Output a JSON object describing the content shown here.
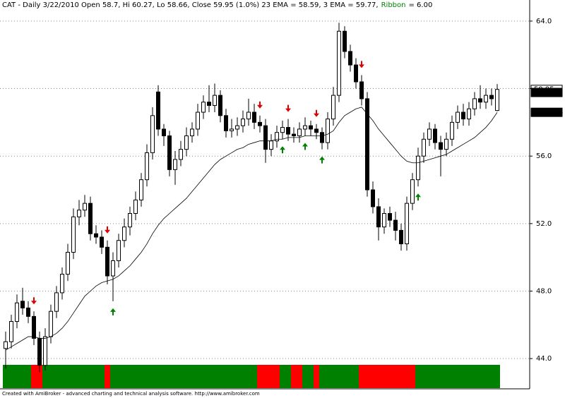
{
  "chart_data": {
    "type": "candlestick",
    "title": "CAT - Daily 3/22/2010 Open 58.7, Hi 60.27, Lo 58.66, Close 59.95 (1.0%) 23 EMA = 58.59, 3 EMA = 59.77,",
    "ribbon_name": "Ribbon",
    "ribbon_text": "= 6.00",
    "footer": "Created with AmiBroker - advanced charting and technical analysis software. http://www.amibroker.com",
    "ylim": [
      42.25,
      65.25
    ],
    "yticks": [
      {
        "value": 44,
        "label": "44.0"
      },
      {
        "value": 48,
        "label": "48.0"
      },
      {
        "value": 52,
        "label": "52.0"
      },
      {
        "value": 56,
        "label": "56.0"
      },
      {
        "value": 60,
        "label": "60.0"
      },
      {
        "value": 64,
        "label": "64.0"
      }
    ],
    "grid": true,
    "open": [
      44.6,
      45.0,
      46.2,
      47.4,
      47.0,
      46.5,
      45.2,
      43.6,
      45.3,
      46.8,
      47.9,
      49.0,
      50.3,
      52.4,
      52.8,
      53.2,
      51.4,
      51.2,
      50.6,
      48.9,
      49.8,
      51.0,
      51.8,
      52.6,
      53.4,
      54.6,
      56.2,
      59.8,
      57.6,
      57.2,
      55.2,
      55.8,
      56.4,
      57.2,
      57.6,
      58.6,
      59.2,
      59.0,
      59.6,
      58.4,
      57.5,
      57.6,
      57.8,
      58.2,
      58.6,
      58.0,
      57.8,
      56.4,
      56.9,
      57.4,
      57.7,
      57.3,
      57.2,
      57.6,
      57.8,
      57.6,
      57.4,
      56.8,
      58.2,
      59.6,
      63.4,
      62.2,
      61.4,
      60.4,
      59.4,
      54.0,
      53.0,
      51.8,
      52.6,
      52.2,
      51.6,
      50.8,
      53.2,
      54.6,
      56.0,
      57.0,
      57.6,
      56.8,
      56.4,
      57.0,
      58.0,
      58.6,
      58.2,
      58.8,
      59.4,
      59.2,
      59.6,
      58.7
    ],
    "high": [
      45.6,
      46.6,
      47.8,
      48.2,
      47.4,
      46.8,
      45.6,
      45.8,
      47.2,
      48.3,
      49.4,
      50.8,
      52.9,
      53.4,
      53.7,
      53.6,
      51.9,
      51.6,
      51.0,
      50.3,
      51.4,
      52.3,
      53.0,
      53.9,
      55.0,
      56.7,
      58.9,
      60.2,
      57.9,
      57.5,
      56.3,
      56.9,
      57.7,
      58.0,
      59.1,
      59.6,
      60.2,
      60.3,
      59.9,
      58.8,
      58.2,
      58.3,
      58.7,
      59.4,
      59.1,
      58.4,
      58.2,
      57.3,
      57.8,
      58.1,
      58.2,
      57.7,
      58.0,
      58.3,
      58.1,
      57.9,
      57.7,
      58.6,
      60.1,
      63.9,
      63.7,
      62.6,
      61.8,
      60.8,
      59.8,
      54.5,
      53.5,
      52.9,
      53.0,
      52.7,
      52.0,
      53.6,
      55.0,
      56.5,
      57.4,
      58.0,
      57.9,
      57.2,
      57.4,
      58.4,
      59.0,
      59.1,
      59.2,
      59.8,
      60.2,
      60.0,
      60.0,
      60.27
    ],
    "low": [
      43.4,
      44.6,
      45.8,
      46.6,
      46.1,
      44.8,
      43.2,
      43.3,
      44.9,
      46.4,
      47.5,
      48.6,
      49.9,
      51.9,
      52.4,
      51.0,
      50.8,
      50.2,
      48.4,
      47.4,
      49.4,
      50.6,
      51.3,
      52.2,
      53.0,
      54.2,
      55.8,
      57.2,
      56.6,
      54.8,
      54.3,
      55.4,
      56.0,
      56.8,
      57.2,
      58.2,
      58.6,
      58.6,
      58.0,
      57.1,
      57.1,
      57.2,
      57.4,
      57.8,
      57.6,
      57.4,
      55.6,
      56.0,
      56.5,
      57.0,
      56.9,
      56.8,
      56.8,
      57.2,
      57.2,
      57.0,
      56.4,
      56.4,
      57.8,
      59.2,
      61.8,
      61.0,
      60.0,
      59.0,
      53.6,
      52.6,
      51.0,
      51.4,
      51.8,
      51.0,
      50.4,
      50.4,
      52.8,
      54.2,
      55.6,
      56.6,
      56.4,
      54.8,
      56.0,
      56.6,
      57.6,
      57.8,
      57.8,
      58.4,
      58.8,
      58.8,
      59.0,
      58.66
    ],
    "close": [
      45.0,
      46.2,
      47.3,
      47.0,
      46.5,
      45.2,
      43.6,
      45.3,
      46.8,
      47.9,
      49.0,
      50.3,
      52.4,
      52.8,
      53.2,
      51.4,
      51.2,
      50.6,
      48.9,
      49.8,
      51.0,
      51.8,
      52.6,
      53.4,
      54.6,
      56.2,
      58.4,
      57.6,
      57.2,
      55.2,
      55.8,
      56.4,
      57.2,
      57.6,
      58.6,
      59.2,
      59.0,
      59.6,
      58.4,
      57.5,
      57.6,
      57.8,
      58.2,
      58.6,
      58.0,
      57.8,
      56.4,
      56.9,
      57.4,
      57.7,
      57.3,
      57.2,
      57.6,
      57.8,
      57.6,
      57.4,
      56.8,
      58.2,
      59.6,
      63.4,
      62.2,
      61.4,
      60.4,
      59.4,
      54.0,
      53.0,
      51.8,
      52.6,
      52.2,
      51.6,
      50.8,
      53.2,
      54.6,
      56.0,
      57.0,
      57.6,
      56.8,
      56.4,
      57.0,
      58.0,
      58.6,
      58.2,
      58.8,
      59.4,
      59.2,
      59.6,
      59.4,
      59.95
    ],
    "ema23": [
      44.5,
      44.7,
      44.9,
      45.1,
      45.3,
      45.3,
      45.2,
      45.2,
      45.3,
      45.5,
      45.8,
      46.2,
      46.7,
      47.2,
      47.7,
      48.0,
      48.3,
      48.5,
      48.6,
      48.7,
      48.9,
      49.2,
      49.5,
      49.9,
      50.3,
      50.8,
      51.4,
      51.9,
      52.3,
      52.6,
      52.9,
      53.2,
      53.5,
      53.9,
      54.3,
      54.7,
      55.1,
      55.5,
      55.8,
      56.0,
      56.2,
      56.4,
      56.5,
      56.7,
      56.8,
      56.9,
      56.9,
      56.9,
      57.0,
      57.0,
      57.1,
      57.1,
      57.1,
      57.2,
      57.2,
      57.2,
      57.2,
      57.3,
      57.5,
      58.0,
      58.4,
      58.6,
      58.8,
      58.9,
      58.5,
      58.1,
      57.6,
      57.2,
      56.8,
      56.4,
      56.0,
      55.7,
      55.6,
      55.6,
      55.7,
      55.8,
      55.9,
      56.0,
      56.1,
      56.3,
      56.5,
      56.7,
      56.9,
      57.1,
      57.4,
      57.7,
      58.1,
      58.59
    ],
    "ribbon_colors": [
      "#008000",
      "#008000",
      "#008000",
      "#008000",
      "#008000",
      "#ff0000",
      "#ff0000",
      "#008000",
      "#008000",
      "#008000",
      "#008000",
      "#008000",
      "#008000",
      "#008000",
      "#008000",
      "#008000",
      "#008000",
      "#008000",
      "#ff0000",
      "#008000",
      "#008000",
      "#008000",
      "#008000",
      "#008000",
      "#008000",
      "#008000",
      "#008000",
      "#008000",
      "#008000",
      "#008000",
      "#008000",
      "#008000",
      "#008000",
      "#008000",
      "#008000",
      "#008000",
      "#008000",
      "#008000",
      "#008000",
      "#008000",
      "#008000",
      "#008000",
      "#008000",
      "#008000",
      "#008000",
      "#ff0000",
      "#ff0000",
      "#ff0000",
      "#ff0000",
      "#008000",
      "#008000",
      "#ff0000",
      "#ff0000",
      "#008000",
      "#008000",
      "#ff0000",
      "#008000",
      "#008000",
      "#008000",
      "#008000",
      "#008000",
      "#008000",
      "#008000",
      "#ff0000",
      "#ff0000",
      "#ff0000",
      "#ff0000",
      "#ff0000",
      "#ff0000",
      "#ff0000",
      "#ff0000",
      "#ff0000",
      "#ff0000",
      "#008000",
      "#008000",
      "#008000",
      "#008000",
      "#008000",
      "#008000",
      "#008000",
      "#008000",
      "#008000",
      "#008000",
      "#008000",
      "#008000",
      "#008000",
      "#008000",
      "#008000"
    ],
    "sell_signals": [
      5,
      18,
      45,
      50,
      55,
      63
    ],
    "buy_signals": [
      19,
      49,
      53,
      56,
      73
    ],
    "close_label": {
      "value": 59.95,
      "label": "59.95"
    },
    "ema3_label": {
      "value": 59.7712,
      "label": "59.7712"
    },
    "ema23_label": {
      "value": 58.5944,
      "label": "58.5944"
    }
  }
}
